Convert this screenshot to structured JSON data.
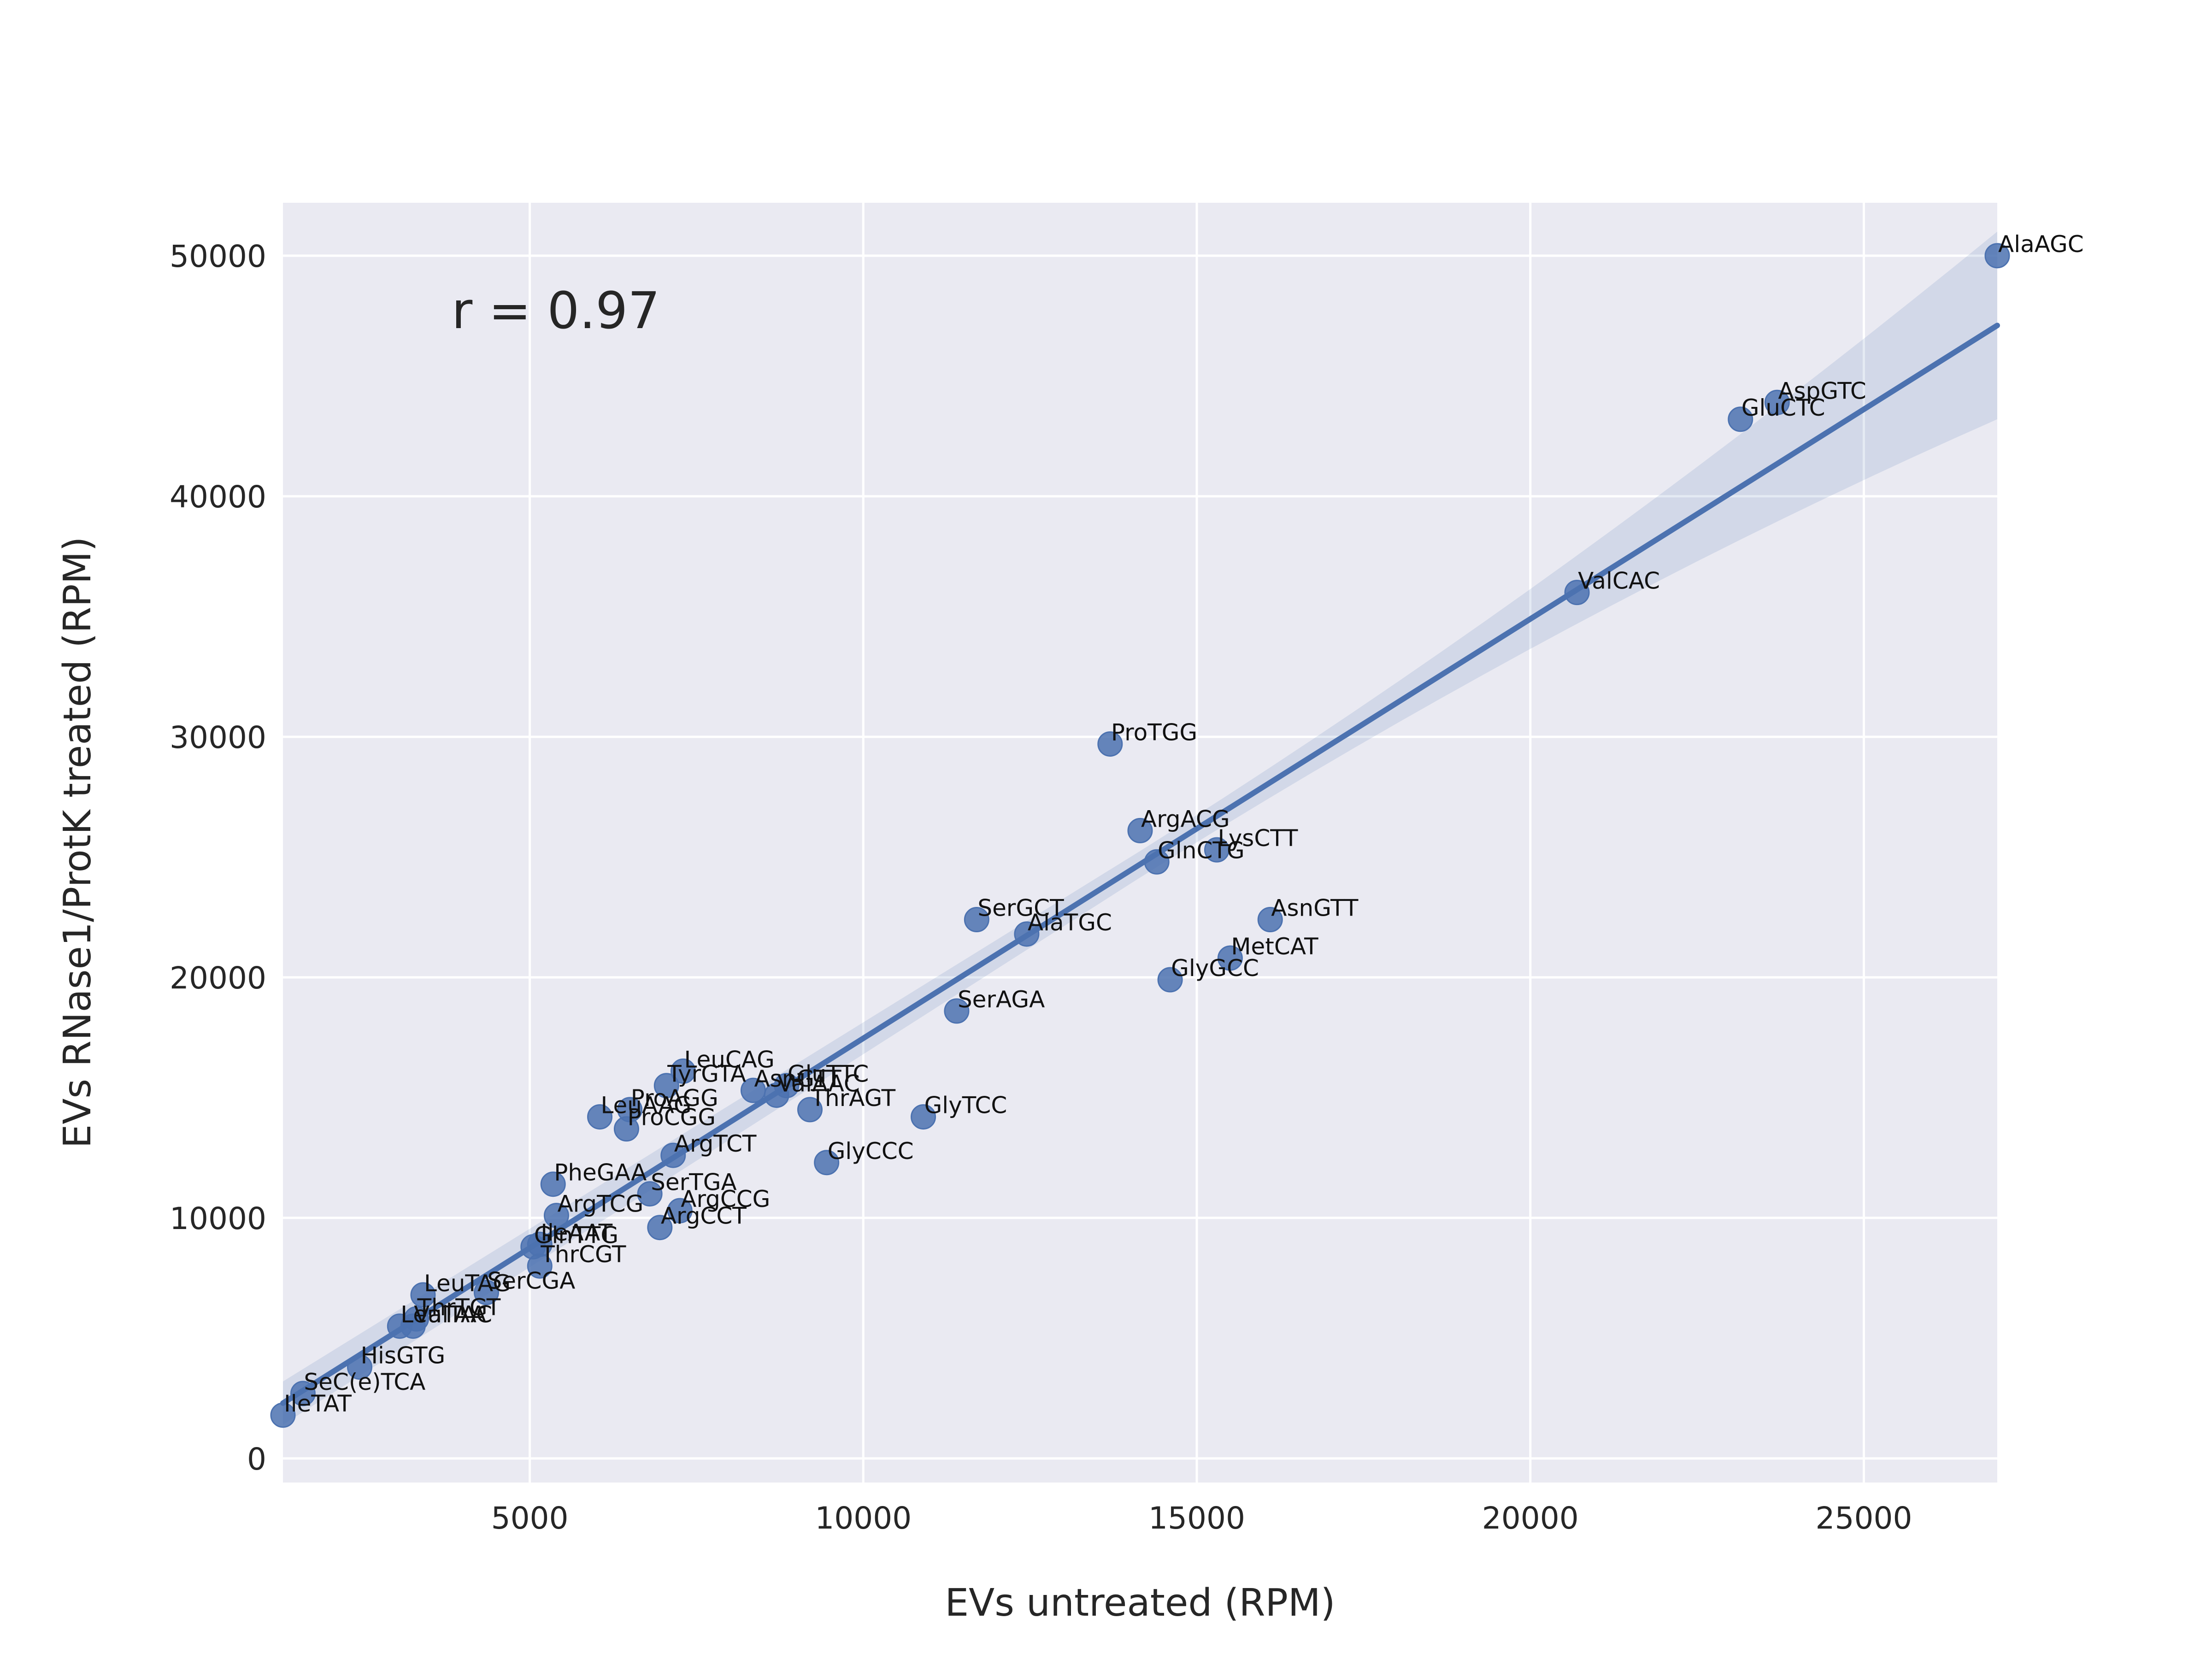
{
  "chart_data": {
    "type": "scatter",
    "title": "",
    "xlabel": "EVs untreated (RPM)",
    "ylabel": "EVs RNase1/ProtK treated (RPM)",
    "xlim": [
      1300,
      27000
    ],
    "ylim": [
      -1000,
      52200
    ],
    "xticks": [
      5000,
      10000,
      15000,
      20000,
      25000
    ],
    "xtick_labels": [
      "5000",
      "10000",
      "15000",
      "20000",
      "25000"
    ],
    "yticks": [
      0,
      10000,
      20000,
      30000,
      40000,
      50000
    ],
    "ytick_labels": [
      "0",
      "10000",
      "20000",
      "30000",
      "40000",
      "50000"
    ],
    "grid": true,
    "annotation": "r = 0.97",
    "colors": {
      "background": "#EAEAF2",
      "grid": "#FFFFFF",
      "marker": "#4C72B0",
      "line": "#4C72B0",
      "band": "#4C72B0"
    },
    "regression": {
      "x_start": 1300,
      "y_start": 2300,
      "x_end": 27000,
      "y_end": 47100,
      "ci_at_start": 900,
      "ci_at_mid": 550,
      "ci_at_end": 3900
    },
    "points": [
      {
        "label": "AlaAGC",
        "x": 27000,
        "y": 50000
      },
      {
        "label": "AspGTC",
        "x": 23700,
        "y": 43900
      },
      {
        "label": "GluCTC",
        "x": 23150,
        "y": 43200
      },
      {
        "label": "ValCAC",
        "x": 20700,
        "y": 36000
      },
      {
        "label": "ProTGG",
        "x": 13700,
        "y": 29700
      },
      {
        "label": "ArgACG",
        "x": 14150,
        "y": 26100
      },
      {
        "label": "LysCTT",
        "x": 15300,
        "y": 25300
      },
      {
        "label": "GlnCTG",
        "x": 14400,
        "y": 24800
      },
      {
        "label": "AsnGTT",
        "x": 16100,
        "y": 22400
      },
      {
        "label": "SerGCT",
        "x": 11700,
        "y": 22400
      },
      {
        "label": "AlaTGC",
        "x": 12450,
        "y": 21800
      },
      {
        "label": "MetCAT",
        "x": 15500,
        "y": 20800
      },
      {
        "label": "GlyGCC",
        "x": 14600,
        "y": 19900
      },
      {
        "label": "SerAGA",
        "x": 11400,
        "y": 18600
      },
      {
        "label": "LeuCAG",
        "x": 7300,
        "y": 16100
      },
      {
        "label": "GluTTC",
        "x": 8850,
        "y": 15500
      },
      {
        "label": "TyrGTA",
        "x": 7050,
        "y": 15500
      },
      {
        "label": "AsnGTT",
        "x": 8350,
        "y": 15300
      },
      {
        "label": "ValAAC",
        "x": 8700,
        "y": 15100
      },
      {
        "label": "GlyTCC",
        "x": 10900,
        "y": 14200
      },
      {
        "label": "ThrAGT",
        "x": 9200,
        "y": 14500
      },
      {
        "label": "ProAGG",
        "x": 6500,
        "y": 14500
      },
      {
        "label": "LeuAAG",
        "x": 6050,
        "y": 14200
      },
      {
        "label": "ProCGG",
        "x": 6450,
        "y": 13700
      },
      {
        "label": "ArgTCT",
        "x": 7150,
        "y": 12600
      },
      {
        "label": "GlyCCC",
        "x": 9450,
        "y": 12300
      },
      {
        "label": "PheGAA",
        "x": 5350,
        "y": 11400
      },
      {
        "label": "SerTGA",
        "x": 6800,
        "y": 11000
      },
      {
        "label": "ArgTCG",
        "x": 5400,
        "y": 10100
      },
      {
        "label": "ArgCCG",
        "x": 7250,
        "y": 10300
      },
      {
        "label": "ArgCCT",
        "x": 6950,
        "y": 9600
      },
      {
        "label": "GlnTTG",
        "x": 5050,
        "y": 8800
      },
      {
        "label": "IleAAT",
        "x": 5150,
        "y": 8900
      },
      {
        "label": "ThrCGT",
        "x": 5150,
        "y": 8000
      },
      {
        "label": "LeuTAG",
        "x": 3400,
        "y": 6800
      },
      {
        "label": "SerCGA",
        "x": 4350,
        "y": 6900
      },
      {
        "label": "ThrTGT",
        "x": 3300,
        "y": 5800
      },
      {
        "label": "ValTAC",
        "x": 3250,
        "y": 5500
      },
      {
        "label": "LeuTAA",
        "x": 3050,
        "y": 5500
      },
      {
        "label": "HisGTG",
        "x": 2450,
        "y": 3800
      },
      {
        "label": "SeC(e)TCA",
        "x": 1600,
        "y": 2700
      },
      {
        "label": "IleTAT",
        "x": 1300,
        "y": 1800
      }
    ]
  }
}
